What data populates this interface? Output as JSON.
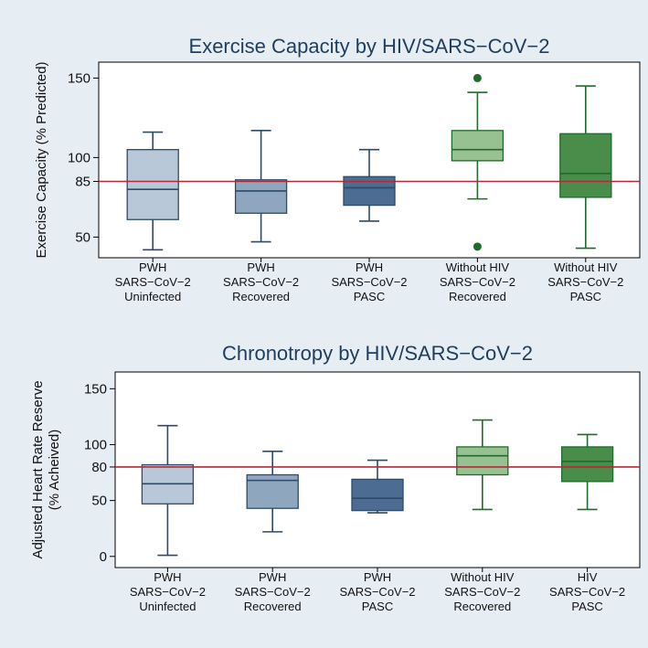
{
  "colors": {
    "background": "#e7eef3",
    "plot_bg": "#ffffff",
    "reference_line": "#b22a3a",
    "title": "#1f3d5c"
  },
  "chart_data": [
    {
      "type": "box",
      "title": "Exercise Capacity by HIV/SARS−CoV−2",
      "ylabel_lines": [
        "Exercise Capacity (% Predicted)"
      ],
      "ylim": [
        37,
        160
      ],
      "yticks": [
        50,
        85,
        100,
        150
      ],
      "reference_line": 85,
      "categories": [
        {
          "lines": [
            "PWH",
            "SARS−CoV−2",
            "Uninfected"
          ]
        },
        {
          "lines": [
            "PWH",
            "SARS−CoV−2",
            "Recovered"
          ]
        },
        {
          "lines": [
            "PWH",
            "SARS−CoV−2",
            "PASC"
          ]
        },
        {
          "lines": [
            "Without HIV",
            "SARS−CoV−2",
            "Recovered"
          ]
        },
        {
          "lines": [
            "Without HIV",
            "SARS−CoV−2",
            "PASC"
          ]
        }
      ],
      "boxes": [
        {
          "min": 42,
          "q1": 61,
          "median": 80,
          "q3": 105,
          "max": 116,
          "outliers": [],
          "fill": "#b8c8d8",
          "stroke": "#2c4a6a"
        },
        {
          "min": 47,
          "q1": 65,
          "median": 79,
          "q3": 86,
          "max": 117,
          "outliers": [],
          "fill": "#8fa6bf",
          "stroke": "#2c4a6a"
        },
        {
          "min": 60,
          "q1": 70,
          "median": 81,
          "q3": 88,
          "max": 105,
          "outliers": [],
          "fill": "#4d6c91",
          "stroke": "#2c4a6a"
        },
        {
          "min": 74,
          "q1": 98,
          "median": 105,
          "q3": 117,
          "max": 141,
          "outliers": [
            150,
            44
          ],
          "fill": "#98c192",
          "stroke": "#1f6b2a"
        },
        {
          "min": 43,
          "q1": 75,
          "median": 90,
          "q3": 115,
          "max": 145,
          "outliers": [],
          "fill": "#4a8c4a",
          "stroke": "#1f6b2a"
        }
      ]
    },
    {
      "type": "box",
      "title": "Chronotropy by HIV/SARS−CoV−2",
      "ylabel_lines": [
        "Adjusted Heart Rate Reserve",
        "(% Acheived)"
      ],
      "ylim": [
        -10,
        165
      ],
      "yticks": [
        0,
        50,
        80,
        100,
        150
      ],
      "reference_line": 80,
      "categories": [
        {
          "lines": [
            "PWH",
            "SARS−CoV−2",
            "Uninfected"
          ]
        },
        {
          "lines": [
            "PWH",
            "SARS−CoV−2",
            "Recovered"
          ]
        },
        {
          "lines": [
            "PWH",
            "SARS−CoV−2",
            "PASC"
          ]
        },
        {
          "lines": [
            "Without HIV",
            "SARS−CoV−2",
            "Recovered"
          ]
        },
        {
          "lines": [
            "HIV",
            "SARS−CoV−2",
            "PASC"
          ]
        }
      ],
      "boxes": [
        {
          "min": 1,
          "q1": 47,
          "median": 65,
          "q3": 82,
          "max": 117,
          "outliers": [],
          "fill": "#b8c8d8",
          "stroke": "#2c4a6a"
        },
        {
          "min": 22,
          "q1": 43,
          "median": 68,
          "q3": 73,
          "max": 94,
          "outliers": [],
          "fill": "#8fa6bf",
          "stroke": "#2c4a6a"
        },
        {
          "min": 39,
          "q1": 41,
          "median": 52,
          "q3": 69,
          "max": 86,
          "outliers": [],
          "fill": "#4d6c91",
          "stroke": "#2c4a6a"
        },
        {
          "min": 42,
          "q1": 73,
          "median": 90,
          "q3": 98,
          "max": 122,
          "outliers": [],
          "fill": "#98c192",
          "stroke": "#1f6b2a"
        },
        {
          "min": 42,
          "q1": 67,
          "median": 85,
          "q3": 98,
          "max": 109,
          "outliers": [],
          "fill": "#4a8c4a",
          "stroke": "#1f6b2a"
        }
      ]
    }
  ]
}
